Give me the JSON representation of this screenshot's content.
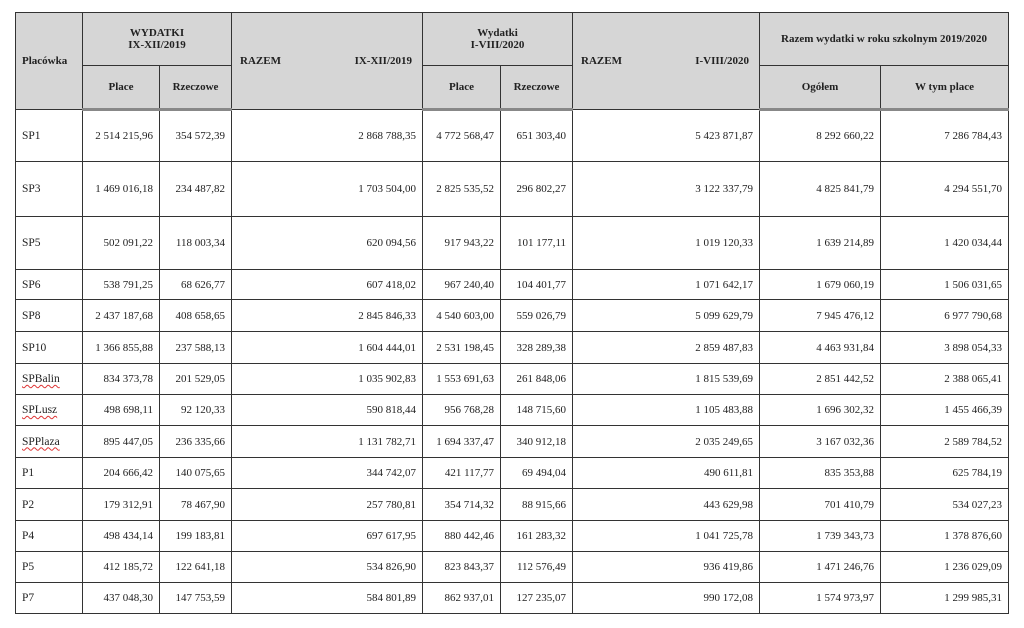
{
  "header": {
    "placowka": "Placówka",
    "group1_line1": "WYDATKI",
    "group1_line2": "IX-XII/2019",
    "razem1_left": "RAZEM",
    "razem1_right": "IX-XII/2019",
    "group2_line1": "Wydatki",
    "group2_line2": "I-VIII/2020",
    "razem2_left": "RAZEM",
    "razem2_right": "I-VIII/2020",
    "group3": "Razem wydatki w roku szkolnym 2019/2020",
    "place": "Place",
    "rzeczowe": "Rzeczowe",
    "ogolem": "Ogółem",
    "w_tym_place": "W tym place"
  },
  "rows": [
    {
      "name": "SP1",
      "spell": false,
      "values": [
        "2 514 215,96",
        "354 572,39",
        "2 868 788,35",
        "4 772 568,47",
        "651 303,40",
        "5 423 871,87",
        "8 292 660,22",
        "7 286 784,43"
      ]
    },
    {
      "name": "SP3",
      "spell": false,
      "values": [
        "1 469 016,18",
        "234 487,82",
        "1 703 504,00",
        "2 825 535,52",
        "296 802,27",
        "3 122 337,79",
        "4 825 841,79",
        "4 294 551,70"
      ]
    },
    {
      "name": "SP5",
      "spell": false,
      "values": [
        "502 091,22",
        "118 003,34",
        "620 094,56",
        "917 943,22",
        "101 177,11",
        "1 019 120,33",
        "1 639 214,89",
        "1 420 034,44"
      ]
    },
    {
      "name": "SP6",
      "spell": false,
      "values": [
        "538 791,25",
        "68 626,77",
        "607 418,02",
        "967 240,40",
        "104 401,77",
        "1 071 642,17",
        "1 679 060,19",
        "1 506 031,65"
      ]
    },
    {
      "name": "SP8",
      "spell": false,
      "values": [
        "2 437 187,68",
        "408 658,65",
        "2 845 846,33",
        "4 540 603,00",
        "559 026,79",
        "5 099 629,79",
        "7 945 476,12",
        "6 977 790,68"
      ]
    },
    {
      "name": "SP10",
      "spell": false,
      "values": [
        "1 366 855,88",
        "237 588,13",
        "1 604 444,01",
        "2 531 198,45",
        "328 289,38",
        "2 859 487,83",
        "4 463 931,84",
        "3 898 054,33"
      ]
    },
    {
      "name": "SPBalin",
      "spell": true,
      "values": [
        "834 373,78",
        "201 529,05",
        "1 035 902,83",
        "1 553 691,63",
        "261 848,06",
        "1 815 539,69",
        "2 851 442,52",
        "2 388 065,41"
      ]
    },
    {
      "name": "SPLusz",
      "spell": true,
      "values": [
        "498 698,11",
        "92 120,33",
        "590 818,44",
        "956 768,28",
        "148 715,60",
        "1 105 483,88",
        "1 696 302,32",
        "1 455 466,39"
      ]
    },
    {
      "name": "SPPlaza",
      "spell": true,
      "values": [
        "895 447,05",
        "236 335,66",
        "1 131 782,71",
        "1 694 337,47",
        "340 912,18",
        "2 035 249,65",
        "3 167 032,36",
        "2 589 784,52"
      ]
    },
    {
      "name": "P1",
      "spell": false,
      "values": [
        "204 666,42",
        "140 075,65",
        "344 742,07",
        "421 117,77",
        "69 494,04",
        "490 611,81",
        "835 353,88",
        "625 784,19"
      ]
    },
    {
      "name": "P2",
      "spell": false,
      "values": [
        "179 312,91",
        "78 467,90",
        "257 780,81",
        "354 714,32",
        "88 915,66",
        "443 629,98",
        "701 410,79",
        "534 027,23"
      ]
    },
    {
      "name": "P4",
      "spell": false,
      "values": [
        "498 434,14",
        "199 183,81",
        "697 617,95",
        "880 442,46",
        "161 283,32",
        "1 041 725,78",
        "1 739 343,73",
        "1 378 876,60"
      ]
    },
    {
      "name": "P5",
      "spell": false,
      "values": [
        "412 185,72",
        "122 641,18",
        "534 826,90",
        "823 843,37",
        "112 576,49",
        "936 419,86",
        "1 471 246,76",
        "1 236 029,09"
      ]
    },
    {
      "name": "P7",
      "spell": false,
      "values": [
        "437 048,30",
        "147 753,59",
        "584 801,89",
        "862 937,01",
        "127 235,07",
        "990 172,08",
        "1 574 973,97",
        "1 299 985,31"
      ]
    }
  ]
}
